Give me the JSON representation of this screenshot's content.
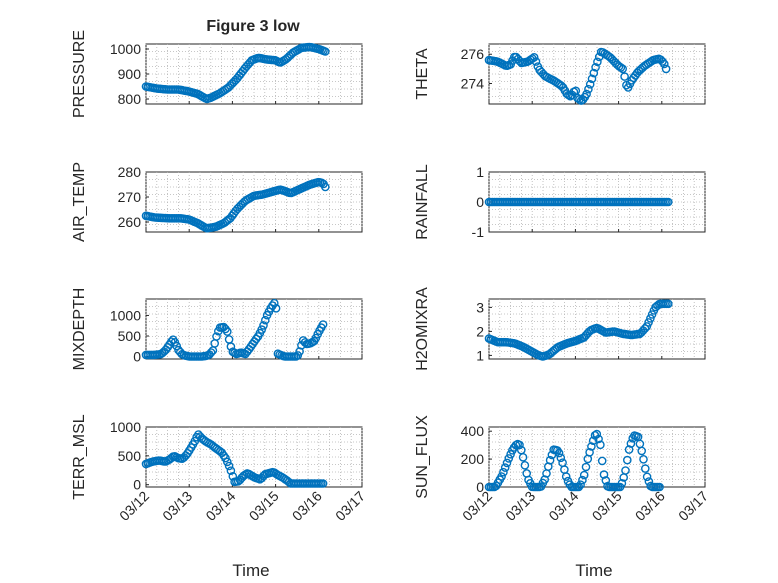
{
  "figure": {
    "title": "Figure 3 low",
    "xlabel": "Time",
    "marker_color": "#0072BD"
  },
  "chart_data": [
    {
      "type": "scatter",
      "ylabel": "PRESSURE",
      "ylim": [
        780,
        1020
      ],
      "yticks": [
        800,
        900,
        1000
      ],
      "xlim": [
        0,
        5
      ],
      "xticks": [
        0,
        1,
        2,
        3,
        4,
        5
      ],
      "xticklabels": [],
      "curve": [
        [
          0,
          850
        ],
        [
          0.25,
          842
        ],
        [
          0.5,
          838
        ],
        [
          0.75,
          838
        ],
        [
          1.0,
          830
        ],
        [
          1.2,
          820
        ],
        [
          1.4,
          800
        ],
        [
          1.5,
          805
        ],
        [
          1.7,
          822
        ],
        [
          1.9,
          845
        ],
        [
          2.1,
          880
        ],
        [
          2.3,
          925
        ],
        [
          2.45,
          955
        ],
        [
          2.6,
          965
        ],
        [
          2.8,
          958
        ],
        [
          3.0,
          955
        ],
        [
          3.1,
          945
        ],
        [
          3.25,
          960
        ],
        [
          3.4,
          985
        ],
        [
          3.6,
          1005
        ],
        [
          3.8,
          1008
        ],
        [
          4.0,
          1000
        ],
        [
          4.15,
          990
        ]
      ]
    },
    {
      "type": "scatter",
      "ylabel": "THETA",
      "ylim": [
        272.6,
        276.7
      ],
      "yticks": [
        274,
        276
      ],
      "xlim": [
        0,
        5
      ],
      "xticks": [
        0,
        1,
        2,
        3,
        4,
        5
      ],
      "xticklabels": [],
      "curve": [
        [
          0,
          275.6
        ],
        [
          0.2,
          275.5
        ],
        [
          0.4,
          275.2
        ],
        [
          0.5,
          275.3
        ],
        [
          0.6,
          275.9
        ],
        [
          0.75,
          275.4
        ],
        [
          0.9,
          275.5
        ],
        [
          1.05,
          275.8
        ],
        [
          1.15,
          275.0
        ],
        [
          1.3,
          274.5
        ],
        [
          1.5,
          274.2
        ],
        [
          1.7,
          273.8
        ],
        [
          1.8,
          273.3
        ],
        [
          1.9,
          273.1
        ],
        [
          2.0,
          273.6
        ],
        [
          2.05,
          273.0
        ],
        [
          2.15,
          272.8
        ],
        [
          2.25,
          273.2
        ],
        [
          2.35,
          274.0
        ],
        [
          2.5,
          275.4
        ],
        [
          2.6,
          276.2
        ],
        [
          2.7,
          276.0
        ],
        [
          2.8,
          275.8
        ],
        [
          2.9,
          275.5
        ],
        [
          3.0,
          275.2
        ],
        [
          3.1,
          275.0
        ],
        [
          3.2,
          273.6
        ],
        [
          3.3,
          274.2
        ],
        [
          3.45,
          274.8
        ],
        [
          3.6,
          275.2
        ],
        [
          3.8,
          275.6
        ],
        [
          3.95,
          275.7
        ],
        [
          4.05,
          275.4
        ],
        [
          4.1,
          275.0
        ]
      ]
    },
    {
      "type": "scatter",
      "ylabel": "AIR_TEMP",
      "ylim": [
        256,
        280
      ],
      "yticks": [
        260,
        270,
        280
      ],
      "xlim": [
        0,
        5
      ],
      "xticks": [
        0,
        1,
        2,
        3,
        4,
        5
      ],
      "xticklabels": [],
      "curve": [
        [
          0,
          262.5
        ],
        [
          0.2,
          261.8
        ],
        [
          0.5,
          261.5
        ],
        [
          0.8,
          261.5
        ],
        [
          1.0,
          261.0
        ],
        [
          1.2,
          259.5
        ],
        [
          1.4,
          257.5
        ],
        [
          1.6,
          258.0
        ],
        [
          1.8,
          259.5
        ],
        [
          1.95,
          261.5
        ],
        [
          2.1,
          265.0
        ],
        [
          2.3,
          268.5
        ],
        [
          2.5,
          270.5
        ],
        [
          2.7,
          271.0
        ],
        [
          2.9,
          272.0
        ],
        [
          3.1,
          273.0
        ],
        [
          3.2,
          272.5
        ],
        [
          3.35,
          271.5
        ],
        [
          3.6,
          273.5
        ],
        [
          3.8,
          275.0
        ],
        [
          4.0,
          276.0
        ],
        [
          4.1,
          275.5
        ],
        [
          4.15,
          274.0
        ]
      ]
    },
    {
      "type": "scatter",
      "ylabel": "RAINFALL",
      "ylim": [
        -1,
        1
      ],
      "yticks": [
        -1,
        0,
        1
      ],
      "xlim": [
        0,
        5
      ],
      "xticks": [
        0,
        1,
        2,
        3,
        4,
        5
      ],
      "xticklabels": [],
      "curve": [
        [
          0,
          0
        ],
        [
          4.15,
          0
        ]
      ]
    },
    {
      "type": "scatter",
      "ylabel": "MIXDEPTH",
      "ylim": [
        -60,
        1400
      ],
      "yticks": [
        0,
        500,
        1000
      ],
      "xlim": [
        0,
        5
      ],
      "xticks": [
        0,
        1,
        2,
        3,
        4,
        5
      ],
      "xticklabels": [],
      "curve": [
        [
          0,
          40
        ],
        [
          0.2,
          40
        ],
        [
          0.35,
          60
        ],
        [
          0.45,
          150
        ],
        [
          0.55,
          300
        ],
        [
          0.62,
          420
        ],
        [
          0.68,
          330
        ],
        [
          0.75,
          160
        ],
        [
          0.85,
          40
        ],
        [
          1.0,
          0
        ],
        [
          1.3,
          0
        ],
        [
          1.45,
          30
        ],
        [
          1.55,
          150
        ],
        [
          1.62,
          450
        ],
        [
          1.7,
          700
        ],
        [
          1.8,
          720
        ],
        [
          1.88,
          620
        ],
        [
          1.95,
          300
        ],
        [
          2.0,
          120
        ],
        [
          2.1,
          60
        ],
        [
          2.2,
          100
        ],
        [
          2.3,
          60
        ],
        [
          2.4,
          200
        ],
        [
          2.5,
          350
        ],
        [
          2.6,
          500
        ],
        [
          2.7,
          700
        ],
        [
          2.8,
          1000
        ],
        [
          2.9,
          1200
        ],
        [
          2.97,
          1300
        ],
        [
          3.02,
          1150
        ],
        [
          3.05,
          70
        ],
        [
          3.2,
          0
        ],
        [
          3.5,
          0
        ],
        [
          3.55,
          100
        ],
        [
          3.6,
          280
        ],
        [
          3.65,
          420
        ],
        [
          3.7,
          300
        ],
        [
          3.8,
          320
        ],
        [
          3.9,
          380
        ],
        [
          4.0,
          600
        ],
        [
          4.1,
          780
        ]
      ]
    },
    {
      "type": "scatter",
      "ylabel": "H2OMIXRA",
      "ylim": [
        0.85,
        3.35
      ],
      "yticks": [
        1,
        2,
        3
      ],
      "xlim": [
        0,
        5
      ],
      "xticks": [
        0,
        1,
        2,
        3,
        4,
        5
      ],
      "xticklabels": [],
      "curve": [
        [
          0,
          1.7
        ],
        [
          0.2,
          1.55
        ],
        [
          0.4,
          1.55
        ],
        [
          0.6,
          1.5
        ],
        [
          0.8,
          1.35
        ],
        [
          1.0,
          1.15
        ],
        [
          1.15,
          1.0
        ],
        [
          1.25,
          0.95
        ],
        [
          1.4,
          1.05
        ],
        [
          1.6,
          1.35
        ],
        [
          1.8,
          1.5
        ],
        [
          2.0,
          1.6
        ],
        [
          2.2,
          1.75
        ],
        [
          2.35,
          2.05
        ],
        [
          2.5,
          2.15
        ],
        [
          2.7,
          1.95
        ],
        [
          2.9,
          2.0
        ],
        [
          3.1,
          1.9
        ],
        [
          3.3,
          1.85
        ],
        [
          3.5,
          1.9
        ],
        [
          3.65,
          2.2
        ],
        [
          3.75,
          2.6
        ],
        [
          3.85,
          3.0
        ],
        [
          3.95,
          3.15
        ],
        [
          4.15,
          3.15
        ]
      ]
    },
    {
      "type": "scatter",
      "ylabel": "TERR_MSL",
      "ylim": [
        -40,
        1000
      ],
      "yticks": [
        0,
        500,
        1000
      ],
      "xlim": [
        0,
        5
      ],
      "xticks": [
        0,
        1,
        2,
        3,
        4,
        5
      ],
      "xticklabels": [
        "03/12",
        "03/13",
        "03/14",
        "03/15",
        "03/16",
        "03/17"
      ],
      "curve": [
        [
          0,
          360
        ],
        [
          0.15,
          400
        ],
        [
          0.3,
          420
        ],
        [
          0.45,
          400
        ],
        [
          0.55,
          440
        ],
        [
          0.65,
          500
        ],
        [
          0.75,
          460
        ],
        [
          0.85,
          450
        ],
        [
          0.95,
          530
        ],
        [
          1.05,
          650
        ],
        [
          1.15,
          780
        ],
        [
          1.2,
          880
        ],
        [
          1.3,
          800
        ],
        [
          1.4,
          740
        ],
        [
          1.5,
          700
        ],
        [
          1.6,
          640
        ],
        [
          1.75,
          560
        ],
        [
          1.85,
          450
        ],
        [
          1.95,
          280
        ],
        [
          2.05,
          50
        ],
        [
          2.15,
          60
        ],
        [
          2.25,
          150
        ],
        [
          2.35,
          200
        ],
        [
          2.5,
          130
        ],
        [
          2.65,
          90
        ],
        [
          2.75,
          180
        ],
        [
          2.85,
          200
        ],
        [
          2.95,
          220
        ],
        [
          3.05,
          170
        ],
        [
          3.15,
          130
        ],
        [
          3.25,
          80
        ],
        [
          3.35,
          20
        ],
        [
          3.6,
          20
        ],
        [
          3.9,
          20
        ],
        [
          4.1,
          20
        ]
      ]
    },
    {
      "type": "scatter",
      "ylabel": "SUN_FLUX",
      "ylim": [
        0,
        430
      ],
      "yticks": [
        0,
        200,
        400
      ],
      "xlim": [
        0,
        5
      ],
      "xticks": [
        0,
        1,
        2,
        3,
        4,
        5
      ],
      "xticklabels": [
        "03/12",
        "03/13",
        "03/14",
        "03/15",
        "03/16",
        "03/17"
      ],
      "curve": [
        [
          0,
          0
        ],
        [
          0.15,
          0
        ],
        [
          0.3,
          80
        ],
        [
          0.45,
          200
        ],
        [
          0.55,
          270
        ],
        [
          0.65,
          310
        ],
        [
          0.72,
          300
        ],
        [
          0.8,
          200
        ],
        [
          0.9,
          60
        ],
        [
          1.0,
          0
        ],
        [
          1.2,
          0
        ],
        [
          1.3,
          60
        ],
        [
          1.4,
          180
        ],
        [
          1.5,
          270
        ],
        [
          1.6,
          260
        ],
        [
          1.7,
          180
        ],
        [
          1.8,
          60
        ],
        [
          1.9,
          0
        ],
        [
          2.1,
          0
        ],
        [
          2.2,
          80
        ],
        [
          2.3,
          220
        ],
        [
          2.4,
          320
        ],
        [
          2.45,
          370
        ],
        [
          2.5,
          380
        ],
        [
          2.58,
          300
        ],
        [
          2.65,
          100
        ],
        [
          2.75,
          0
        ],
        [
          3.05,
          0
        ],
        [
          3.15,
          100
        ],
        [
          3.25,
          280
        ],
        [
          3.35,
          370
        ],
        [
          3.45,
          360
        ],
        [
          3.55,
          240
        ],
        [
          3.65,
          80
        ],
        [
          3.75,
          0
        ],
        [
          3.95,
          0
        ]
      ]
    }
  ]
}
